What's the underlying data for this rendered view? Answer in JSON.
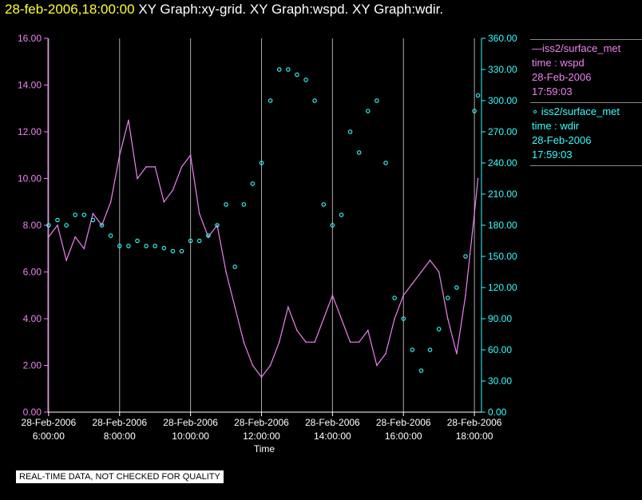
{
  "header": {
    "time": "28-feb-2006,18:00:00",
    "graphs": "XY Graph:xy-grid.  XY Graph:wspd.  XY Graph:wdir."
  },
  "legend": {
    "wspd": {
      "name": "iss2/surface_met",
      "var": "time : wspd",
      "date": "28-Feb-2006",
      "time": "17:59:03"
    },
    "wdir": {
      "name": "iss2/surface_met",
      "var": "time : wdir",
      "date": "28-Feb-2006",
      "time": "17:59:03"
    }
  },
  "disclaimer": "REAL-TIME DATA, NOT CHECKED FOR QUALITY",
  "colors": {
    "wspd": "#ee82ee",
    "wdir": "#33ffff",
    "grid": "#aaaaaa",
    "axis_text": "#ffffff"
  },
  "chart_data": {
    "type": "line",
    "xlabel": "Time",
    "xlim_hours": [
      5.98,
      18.2
    ],
    "x_ticks": [
      {
        "hour": 6,
        "date": "28-Feb-2006",
        "time": "6:00:00"
      },
      {
        "hour": 8,
        "date": "28-Feb-2006",
        "time": "8:00:00"
      },
      {
        "hour": 10,
        "date": "28-Feb-2006",
        "time": "10:00:00"
      },
      {
        "hour": 12,
        "date": "28-Feb-2006",
        "time": "12:00:00"
      },
      {
        "hour": 14,
        "date": "28-Feb-2006",
        "time": "14:00:00"
      },
      {
        "hour": 16,
        "date": "28-Feb-2006",
        "time": "16:00:00"
      },
      {
        "hour": 18,
        "date": "28-Feb-2006",
        "time": "18:00:00"
      }
    ],
    "y_left": {
      "range": [
        0,
        16
      ],
      "ticks": [
        "0.00",
        "2.00",
        "4.00",
        "6.00",
        "8.00",
        "10.00",
        "12.00",
        "14.00",
        "16.00"
      ]
    },
    "y_right": {
      "range": [
        0,
        360
      ],
      "ticks": [
        "0.00",
        "30.00",
        "60.00",
        "90.00",
        "120.00",
        "150.00",
        "180.00",
        "210.00",
        "240.00",
        "270.00",
        "300.00",
        "330.00",
        "360.00"
      ]
    },
    "series": [
      {
        "name": "wspd",
        "style": "line",
        "axis": "left",
        "x": [
          6.0,
          6.25,
          6.5,
          6.75,
          7.0,
          7.25,
          7.5,
          7.75,
          8.0,
          8.25,
          8.5,
          8.75,
          9.0,
          9.25,
          9.5,
          9.75,
          10.0,
          10.25,
          10.5,
          10.75,
          11.0,
          11.25,
          11.5,
          11.75,
          12.0,
          12.25,
          12.5,
          12.75,
          13.0,
          13.25,
          13.5,
          13.75,
          14.0,
          14.25,
          14.5,
          14.75,
          15.0,
          15.25,
          15.5,
          15.75,
          16.0,
          16.25,
          16.5,
          16.75,
          17.0,
          17.25,
          17.5,
          17.75,
          18.0,
          18.1
        ],
        "values": [
          7.5,
          8.0,
          6.5,
          7.5,
          7.0,
          8.5,
          8.0,
          9.0,
          11.0,
          12.5,
          10.0,
          10.5,
          10.5,
          9.0,
          9.5,
          10.5,
          11.0,
          8.5,
          7.5,
          8.0,
          6.0,
          4.5,
          3.0,
          2.0,
          1.5,
          2.0,
          3.0,
          4.5,
          3.5,
          3.0,
          3.0,
          4.0,
          5.0,
          4.0,
          3.0,
          3.0,
          3.5,
          2.0,
          2.5,
          4.0,
          5.0,
          5.5,
          6.0,
          6.5,
          6.0,
          4.0,
          2.5,
          5.0,
          8.5,
          10.0
        ]
      },
      {
        "name": "wdir",
        "style": "scatter",
        "axis": "right",
        "x": [
          6.0,
          6.25,
          6.5,
          6.75,
          7.0,
          7.25,
          7.5,
          7.75,
          8.0,
          8.25,
          8.5,
          8.75,
          9.0,
          9.25,
          9.5,
          9.75,
          10.0,
          10.25,
          10.5,
          10.75,
          11.0,
          11.25,
          11.5,
          11.75,
          12.0,
          12.25,
          12.5,
          12.75,
          13.0,
          13.25,
          13.5,
          13.75,
          14.0,
          14.25,
          14.5,
          14.75,
          15.0,
          15.25,
          15.5,
          15.75,
          16.0,
          16.25,
          16.5,
          16.75,
          17.0,
          17.25,
          17.5,
          17.75,
          18.0,
          18.1
        ],
        "values": [
          180,
          185,
          180,
          190,
          190,
          185,
          180,
          170,
          160,
          160,
          165,
          160,
          160,
          158,
          155,
          155,
          165,
          165,
          170,
          180,
          200,
          140,
          200,
          220,
          240,
          300,
          330,
          330,
          325,
          320,
          300,
          200,
          180,
          190,
          270,
          250,
          290,
          300,
          240,
          110,
          90,
          60,
          40,
          60,
          80,
          110,
          120,
          150,
          290,
          305
        ]
      }
    ]
  }
}
